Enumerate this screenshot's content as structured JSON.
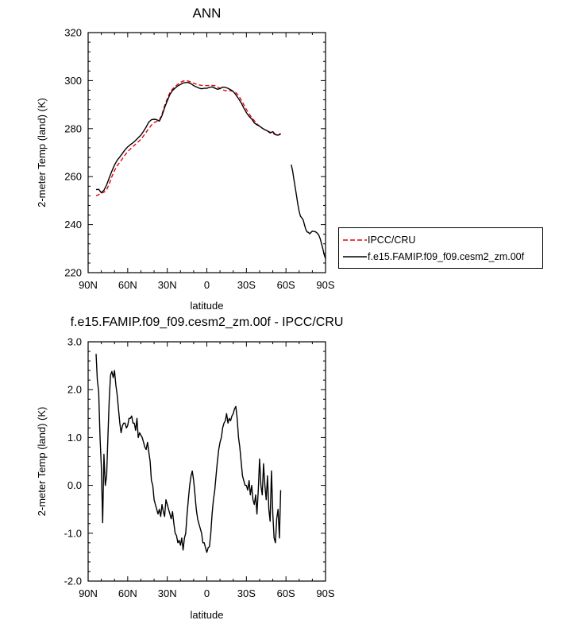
{
  "chart_data": [
    {
      "type": "line",
      "title": "ANN",
      "xlabel": "latitude",
      "ylabel": "2-meter Temp (land) (K)",
      "xlim": [
        90,
        -90
      ],
      "ylim": [
        220,
        320
      ],
      "x_ticks": [
        "90N",
        "60N",
        "30N",
        "0",
        "30S",
        "60S",
        "90S"
      ],
      "y_ticks": [
        "220",
        "240",
        "260",
        "280",
        "300",
        "320"
      ],
      "legend": "right",
      "series": [
        {
          "name": "IPCC/CRU",
          "color": "#e8000b",
          "dash": "dashed",
          "x": [
            84,
            82,
            80,
            78,
            76,
            74,
            72,
            70,
            68,
            66,
            64,
            62,
            60,
            58,
            56,
            54,
            52,
            50,
            48,
            46,
            44,
            42,
            40,
            38,
            36,
            34,
            32,
            30,
            28,
            26,
            24,
            22,
            20,
            18,
            16,
            14,
            12,
            10,
            8,
            6,
            4,
            2,
            0,
            -2,
            -4,
            -6,
            -8,
            -10,
            -12,
            -14,
            -16,
            -18,
            -20,
            -22,
            -24,
            -26,
            -28,
            -30,
            -32,
            -34,
            -36,
            -38,
            -40,
            -42,
            -44,
            -46,
            -48,
            -50,
            -52,
            -54,
            -56
          ],
          "y": [
            252.0,
            252.5,
            253.0,
            253.5,
            254.5,
            257.0,
            260.0,
            262.5,
            264.5,
            266.0,
            267.5,
            269.0,
            270.5,
            271.5,
            272.5,
            273.5,
            274.5,
            275.5,
            277.0,
            278.5,
            280.0,
            281.5,
            282.5,
            283.0,
            283.5,
            286.0,
            289.5,
            292.5,
            295.0,
            296.5,
            297.5,
            298.5,
            299.3,
            299.8,
            300.0,
            299.8,
            299.4,
            298.9,
            298.5,
            298.2,
            298.0,
            297.9,
            297.9,
            298.0,
            298.0,
            297.9,
            297.4,
            296.8,
            296.2,
            295.8,
            295.8,
            295.8,
            295.5,
            295.0,
            293.8,
            292.0,
            290.0,
            288.0,
            286.2,
            284.6,
            283.3,
            282.0,
            281.0,
            280.2,
            279.5,
            279.0,
            278.5,
            278.0,
            277.5,
            277.5,
            278.0
          ]
        },
        {
          "name": "f.e15.FAMIP.f09_f09.cesm2_zm.00f",
          "color": "#000000",
          "dash": "solid",
          "x": [
            84,
            82,
            80,
            78,
            76,
            74,
            72,
            70,
            68,
            66,
            64,
            62,
            60,
            58,
            56,
            54,
            52,
            50,
            48,
            46,
            44,
            42,
            40,
            38,
            36,
            34,
            32,
            30,
            28,
            26,
            24,
            22,
            20,
            18,
            16,
            14,
            12,
            10,
            8,
            6,
            4,
            2,
            0,
            -2,
            -4,
            -6,
            -8,
            -10,
            -12,
            -14,
            -16,
            -18,
            -20,
            -22,
            -24,
            -26,
            -28,
            -30,
            -32,
            -34,
            -36,
            -38,
            -40,
            -42,
            -44,
            -46,
            -48,
            -50,
            -52,
            -54,
            -56,
            null,
            -64,
            -65,
            -66,
            -67,
            -68,
            -69,
            -70,
            -71,
            -72,
            -73,
            -74,
            -75,
            -76,
            -77,
            -78,
            -79,
            -80,
            -81,
            -82,
            -83,
            -84,
            -85,
            -86,
            -87,
            -88,
            -89,
            -90
          ],
          "y": [
            254.6,
            254.7,
            253.3,
            254.3,
            256.6,
            259.5,
            262.3,
            264.8,
            266.8,
            268.2,
            269.7,
            271.2,
            272.4,
            273.3,
            274.1,
            275.1,
            276.2,
            277.3,
            278.9,
            280.7,
            282.7,
            283.7,
            283.9,
            283.7,
            283.1,
            285.4,
            288.7,
            291.6,
            294.2,
            295.9,
            296.9,
            297.8,
            298.4,
            299.0,
            299.2,
            299.2,
            298.7,
            297.9,
            297.4,
            296.9,
            296.6,
            296.8,
            296.8,
            297.2,
            297.4,
            296.9,
            296.4,
            296.7,
            297.3,
            297.2,
            296.8,
            296.2,
            295.5,
            294.1,
            292.5,
            290.8,
            288.6,
            286.7,
            285.1,
            284.0,
            282.4,
            281.6,
            281.0,
            280.2,
            279.5,
            279.0,
            278.2,
            278.7,
            277.5,
            277.3,
            277.6,
            null,
            265.0,
            262.5,
            259.0,
            255.5,
            252.0,
            248.5,
            245.5,
            243.5,
            242.8,
            242.0,
            240.0,
            238.0,
            237.0,
            236.8,
            236.2,
            236.8,
            237.3,
            237.2,
            237.1,
            236.8,
            236.3,
            235.5,
            234.0,
            232.0,
            229.8,
            227.5,
            225.8
          ]
        }
      ]
    },
    {
      "type": "line",
      "title": "f.e15.FAMIP.f09_f09.cesm2_zm.00f - IPCC/CRU",
      "xlabel": "latitude",
      "ylabel": "2-meter Temp (land) (K)",
      "xlim": [
        90,
        -90
      ],
      "ylim": [
        -2.0,
        3.0
      ],
      "x_ticks": [
        "90N",
        "60N",
        "30N",
        "0",
        "30S",
        "60S",
        "90S"
      ],
      "y_ticks": [
        "-2.0",
        "-1.0",
        "0.0",
        "1.0",
        "2.0",
        "3.0"
      ],
      "series": [
        {
          "color": "#000000",
          "x": [
            84,
            83,
            82,
            81,
            80,
            79,
            78,
            77,
            76,
            75,
            74,
            73,
            72,
            71,
            70,
            69,
            68,
            67,
            66,
            65,
            64,
            63,
            62,
            61,
            60,
            59,
            58,
            57,
            56,
            55,
            54,
            53,
            52,
            51,
            50,
            49,
            48,
            47,
            46,
            45,
            44,
            43,
            42,
            41,
            40,
            39,
            38,
            37,
            36,
            35,
            34,
            33,
            32,
            31,
            30,
            29,
            28,
            27,
            26,
            25,
            24,
            23,
            22,
            21,
            20,
            19,
            18,
            17,
            16,
            15,
            14,
            13,
            12,
            11,
            10,
            9,
            8,
            7,
            6,
            5,
            4,
            3,
            2,
            1,
            0,
            -1,
            -2,
            -3,
            -4,
            -5,
            -6,
            -7,
            -8,
            -9,
            -10,
            -11,
            -12,
            -13,
            -14,
            -15,
            -16,
            -17,
            -18,
            -19,
            -20,
            -21,
            -22,
            -23,
            -24,
            -25,
            -26,
            -27,
            -28,
            -29,
            -30,
            -31,
            -32,
            -33,
            -34,
            -35,
            -36,
            -37,
            -38,
            -39,
            -40,
            -41,
            -42,
            -43,
            -44,
            -45,
            -46,
            -47,
            -48,
            -49,
            -50,
            -51,
            -52,
            -53,
            -54,
            -55,
            -56
          ],
          "y": [
            2.75,
            2.2,
            1.95,
            1.0,
            0.4,
            -0.78,
            0.65,
            0.0,
            0.2,
            1.0,
            1.8,
            2.3,
            2.38,
            2.25,
            2.4,
            2.1,
            1.9,
            1.6,
            1.3,
            1.1,
            1.25,
            1.3,
            1.3,
            1.2,
            1.25,
            1.4,
            1.4,
            1.45,
            1.3,
            1.3,
            1.15,
            1.4,
            1.0,
            1.1,
            1.05,
            1.0,
            0.9,
            0.8,
            0.75,
            0.9,
            0.7,
            0.5,
            0.1,
            0.0,
            -0.3,
            -0.4,
            -0.5,
            -0.6,
            -0.5,
            -0.65,
            -0.4,
            -0.55,
            -0.65,
            -0.3,
            -0.4,
            -0.5,
            -0.6,
            -0.7,
            -0.55,
            -0.8,
            -1.0,
            -1.05,
            -1.2,
            -1.15,
            -1.25,
            -1.1,
            -1.35,
            -1.1,
            -1.0,
            -0.6,
            -0.3,
            0.0,
            0.2,
            0.3,
            0.1,
            -0.2,
            -0.5,
            -0.7,
            -0.8,
            -0.9,
            -1.0,
            -1.2,
            -1.2,
            -1.3,
            -1.4,
            -1.3,
            -1.28,
            -1.0,
            -0.6,
            -0.3,
            -0.1,
            0.2,
            0.5,
            0.75,
            0.9,
            1.0,
            1.2,
            1.3,
            1.35,
            1.5,
            1.3,
            1.4,
            1.35,
            1.45,
            1.5,
            1.6,
            1.65,
            1.4,
            1.0,
            0.8,
            0.5,
            0.2,
            0.1,
            0.0,
            0.0,
            -0.1,
            0.1,
            -0.2,
            0.0,
            -0.3,
            -0.4,
            -0.2,
            -0.6,
            -0.1,
            0.55,
            0.0,
            -0.2,
            0.45,
            0.0,
            -0.3,
            0.2,
            -0.5,
            -0.75,
            0.3,
            -0.6,
            -1.1,
            -1.2,
            -0.7,
            -0.5,
            -1.1,
            -0.1
          ]
        }
      ]
    }
  ]
}
